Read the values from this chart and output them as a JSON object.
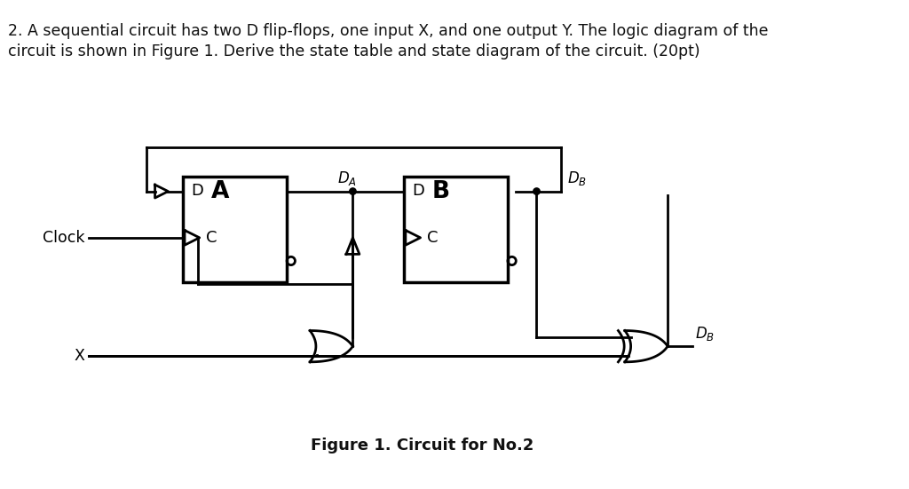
{
  "title_line1": "2. A sequential circuit has two D flip-flops, one input X, and one output Y. The logic diagram of the",
  "title_line2": "circuit is shown in Figure 1. Derive the state table and state diagram of the circuit. (20pt)",
  "figure_caption": "Figure 1. Circuit for No.2",
  "bg_color": "#ffffff",
  "text_color": "#000000",
  "line_color": "#000000",
  "font_size_body": 13,
  "font_size_caption": 13
}
